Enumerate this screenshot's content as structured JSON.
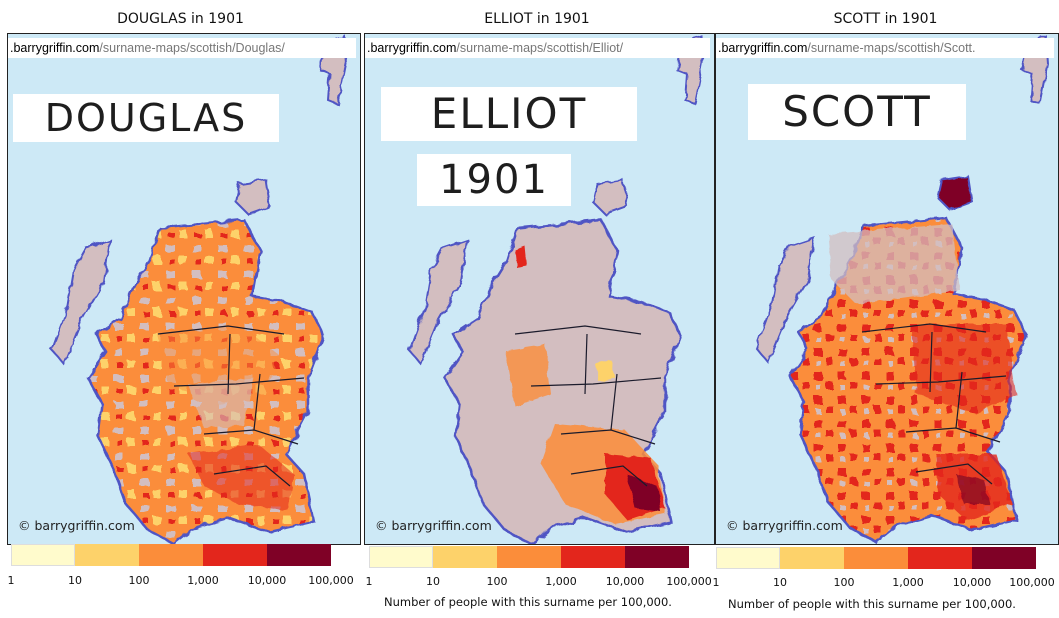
{
  "panels": [
    {
      "title": "DOUGLAS in 1901",
      "url_domain": ".barrygriffin.com",
      "url_path": "/surname-maps/scottish/Douglas/",
      "name": "DOUGLAS",
      "year": "",
      "copyright": "© barrygriffin.com",
      "caption": ""
    },
    {
      "title": "ELLIOT in 1901",
      "url_domain": ".barrygriffin.com",
      "url_path": "/surname-maps/scottish/Elliot/",
      "name": "ELLIOT",
      "year": "1901",
      "copyright": "© barrygriffin.com",
      "caption": "Number of people with this surname per 100,000."
    },
    {
      "title": "SCOTT in 1901",
      "url_domain": ".barrygriffin.com",
      "url_path": "/surname-maps/scottish/Scott.",
      "name": "SCOTT",
      "year": "",
      "copyright": "© barrygriffin.com",
      "caption": "Number of people with this surname per 100,000."
    }
  ],
  "legend": {
    "ticks": [
      "1",
      "10",
      "100",
      "1,000",
      "10,000",
      "100,000"
    ],
    "colors": [
      "#fffbcc",
      "#fdd26a",
      "#fb8d3a",
      "#e3261c",
      "#7f0126"
    ]
  },
  "map_colors": {
    "sea": "#cde9f6",
    "no_data": "#d3bec0",
    "outline": "#5055c4",
    "border": "#1b1b2b"
  }
}
